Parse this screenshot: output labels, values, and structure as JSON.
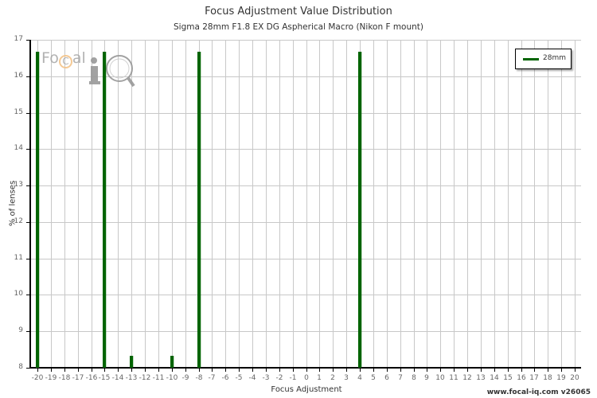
{
  "header": {
    "title": "Focus Adjustment Value Distribution",
    "subtitle": "Sigma 28mm F1.8 EX DG Aspherical Macro (Nikon F mount)"
  },
  "axes": {
    "xlabel": "Focus Adjustment",
    "ylabel": "% of lenses",
    "yticks": [
      "17",
      "16",
      "15",
      "14",
      "13",
      "12",
      "11",
      "10",
      "9",
      "8"
    ],
    "xticks": [
      "-20",
      "-19",
      "-18",
      "-17",
      "-16",
      "-15",
      "-14",
      "-13",
      "-12",
      "-11",
      "-10",
      "-9",
      "-8",
      "-7",
      "-6",
      "-5",
      "-4",
      "-3",
      "-2",
      "-1",
      "0",
      "1",
      "2",
      "3",
      "4",
      "5",
      "6",
      "7",
      "8",
      "9",
      "10",
      "11",
      "12",
      "13",
      "14",
      "15",
      "16",
      "17",
      "18",
      "19",
      "20"
    ]
  },
  "legend": {
    "label": "28mm",
    "color": "#006400"
  },
  "watermark": {
    "text": "FoCal iQ"
  },
  "footer": {
    "text": "www.focal-iq.com  v26065"
  },
  "chart_data": {
    "type": "bar",
    "title": "Focus Adjustment Value Distribution",
    "subtitle": "Sigma 28mm F1.8 EX DG Aspherical Macro (Nikon F mount)",
    "xlabel": "Focus Adjustment",
    "ylabel": "% of lenses",
    "xlim": [
      -20,
      20
    ],
    "ylim": [
      8,
      17
    ],
    "grid": true,
    "legend_position": "top-right",
    "series": [
      {
        "name": "28mm",
        "color": "#006400",
        "points": [
          {
            "x": -20,
            "y": 16.67
          },
          {
            "x": -15,
            "y": 16.67
          },
          {
            "x": -13,
            "y": 8.33
          },
          {
            "x": -10,
            "y": 8.33
          },
          {
            "x": -8,
            "y": 16.67
          },
          {
            "x": 4,
            "y": 16.67
          }
        ]
      }
    ]
  }
}
